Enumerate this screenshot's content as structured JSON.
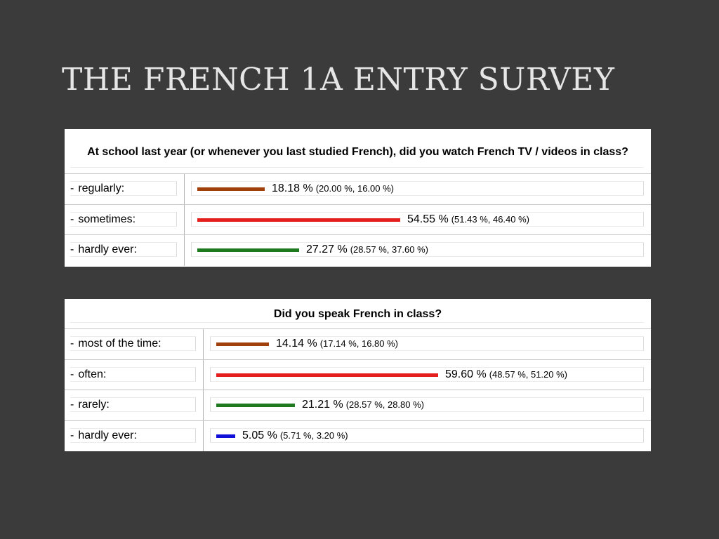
{
  "slide": {
    "title": "THE FRENCH 1A ENTRY SURVEY"
  },
  "chart_data": [
    {
      "type": "bar",
      "title": "At school last year (or whenever you last studied French), did you watch French TV / videos in class?",
      "categories": [
        "regularly:",
        "sometimes:",
        "hardly ever:"
      ],
      "values": [
        18.18,
        54.55,
        27.27
      ],
      "value_labels": [
        "18.18 %",
        "54.55 %",
        "27.27 %"
      ],
      "comparison_labels": [
        "(20.00 %, 16.00 %)",
        "(51.43 %, 46.40 %)",
        "(28.57 %, 37.60 %)"
      ],
      "bar_colors": [
        "#a0400a",
        "#e51e1e",
        "#1f7a1f"
      ],
      "orientation": "horizontal",
      "xlim": [
        0,
        100
      ]
    },
    {
      "type": "bar",
      "title": "Did you speak French in class?",
      "categories": [
        "most of the time:",
        "often:",
        "rarely:",
        "hardly ever:"
      ],
      "values": [
        14.14,
        59.6,
        21.21,
        5.05
      ],
      "value_labels": [
        "14.14 %",
        "59.60 %",
        "21.21 %",
        "5.05 %"
      ],
      "comparison_labels": [
        "(17.14 %, 16.80 %)",
        "(48.57 %, 51.20 %)",
        "(28.57 %, 28.80 %)",
        "(5.71 %, 3.20 %)"
      ],
      "bar_colors": [
        "#a0400a",
        "#e51e1e",
        "#1f7a1f",
        "#1010d8"
      ],
      "orientation": "horizontal",
      "xlim": [
        0,
        100
      ]
    }
  ]
}
